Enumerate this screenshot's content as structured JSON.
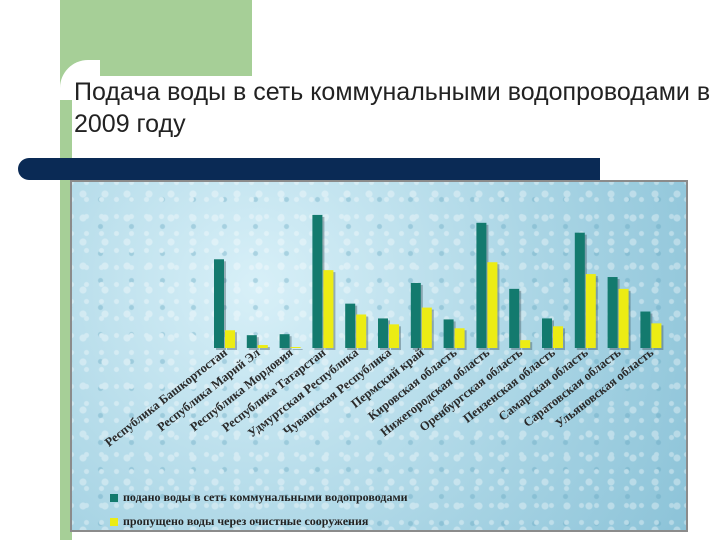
{
  "title": "Подача воды в сеть коммунальными водопроводами  в 2009 году",
  "colors": {
    "series1": "#137a6e",
    "series2": "#ecec14"
  },
  "chart_data": {
    "type": "bar",
    "title": "",
    "xlabel": "",
    "ylabel": "",
    "categories": [
      "Республика Башкортостан",
      "Республика Марий Эл",
      "Республика Мордовия",
      "Республика Татарстан",
      "Удмуртская Республика",
      "Чувашская Республика",
      "Пермский край",
      "Кировская область",
      "Нижегородская область",
      "Оренбургская область",
      "Пензенская область",
      "Самарская область",
      "Саратовская область",
      "Ульяновская область"
    ],
    "series": [
      {
        "name": "подано воды в сеть коммунальными водопроводами",
        "values": [
          90,
          13,
          14,
          135,
          45,
          30,
          66,
          29,
          127,
          60,
          30,
          117,
          72,
          37
        ]
      },
      {
        "name": "пропущено воды через очистные сооружения",
        "values": [
          18,
          3,
          1,
          79,
          34,
          24,
          41,
          20,
          87,
          8,
          22,
          75,
          60,
          25
        ]
      }
    ],
    "ylim": [
      0,
      140
    ],
    "grid": false,
    "legend": "bottom"
  }
}
